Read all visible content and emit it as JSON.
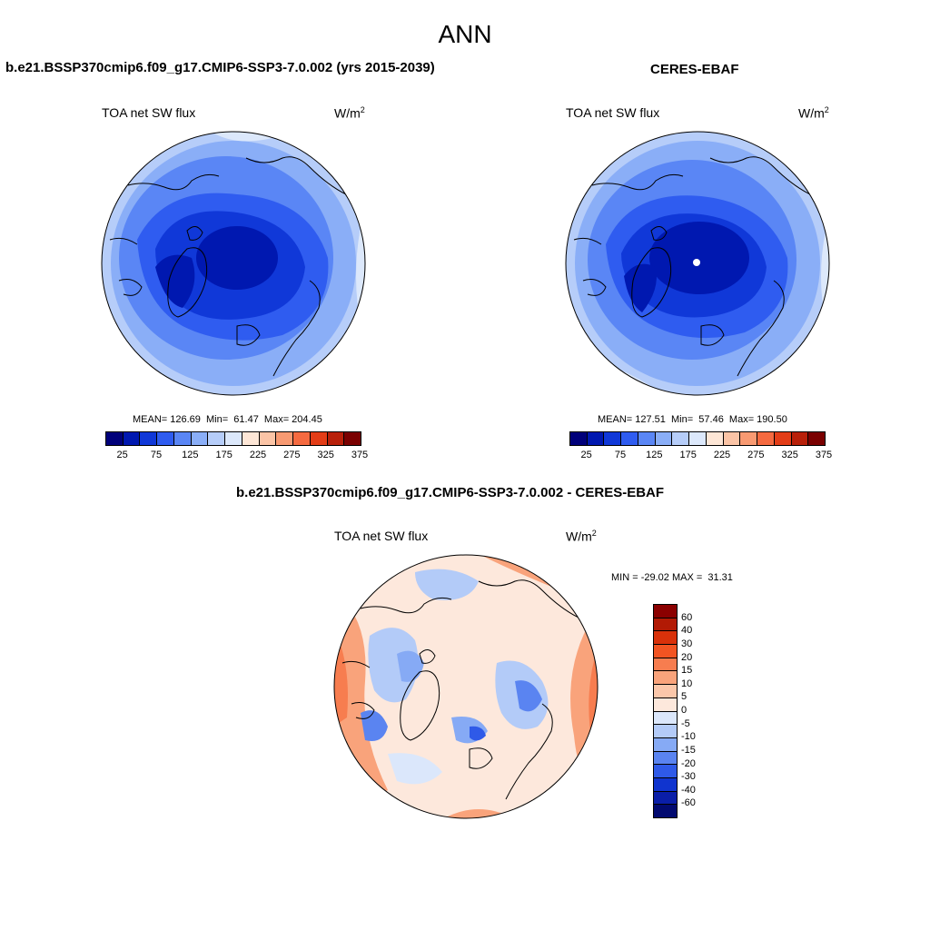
{
  "main_title": "ANN",
  "left_panel": {
    "case_title": "b.e21.BSSP370cmip6.f09_g17.CMIP6-SSP3-7.0.002 (yrs 2015-2039)",
    "label": "TOA net SW flux",
    "units_base": "W/m",
    "units_exp": "2",
    "stats": "MEAN= 126.69  Min=  61.47  Max= 204.45"
  },
  "right_panel": {
    "case_title": "CERES-EBAF",
    "label": "TOA net SW flux",
    "units_base": "W/m",
    "units_exp": "2",
    "stats": "MEAN= 127.51  Min=  57.46  Max= 190.50"
  },
  "bottom_panel": {
    "case_title": "b.e21.BSSP370cmip6.f09_g17.CMIP6-SSP3-7.0.002 - CERES-EBAF",
    "label": "TOA net SW flux",
    "units_base": "W/m",
    "units_exp": "2",
    "minmax": "MIN = -29.02 MAX =  31.31"
  },
  "abs_colorbar": {
    "colors": [
      "#00007a",
      "#0018b0",
      "#1038d8",
      "#2f5cf0",
      "#5a86f5",
      "#8aaef7",
      "#b6cdf9",
      "#dce8fb",
      "#fde6d6",
      "#fbc4a6",
      "#f89a72",
      "#f56a40",
      "#e33d17",
      "#b8200a",
      "#7a0000"
    ],
    "tick_labels": [
      "25",
      "75",
      "125",
      "175",
      "225",
      "275",
      "325",
      "375"
    ]
  },
  "diff_colorbar": {
    "colors_top_to_bottom": [
      "#8b0000",
      "#b21a05",
      "#d9310a",
      "#f25422",
      "#f77d4f",
      "#f9a37b",
      "#fbc7aa",
      "#fde8dc",
      "#dbe7fb",
      "#b3cbf8",
      "#86aaf5",
      "#5a84f1",
      "#2f5ae8",
      "#1034cf",
      "#0a1ea8",
      "#020a70"
    ],
    "tick_labels": [
      "60",
      "40",
      "30",
      "20",
      "15",
      "10",
      "5",
      "0",
      "-5",
      "-10",
      "-15",
      "-20",
      "-30",
      "-40",
      "-60"
    ]
  }
}
